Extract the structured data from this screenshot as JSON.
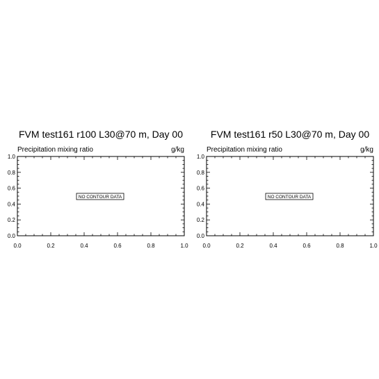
{
  "chart_data": [
    {
      "type": "contour",
      "title": "FVM test161 r100 L30@70 m, Day 00",
      "left_label": "Precipitation mixing ratio",
      "right_label": "g/kg",
      "message": "NO CONTOUR DATA",
      "xlim": [
        0.0,
        1.0
      ],
      "ylim": [
        0.0,
        1.0
      ],
      "x_ticks": [
        "0.0",
        "0.2",
        "0.4",
        "0.6",
        "0.8",
        "1.0"
      ],
      "y_ticks": [
        "0.0",
        "0.2",
        "0.4",
        "0.6",
        "0.8",
        "1.0"
      ],
      "values": []
    },
    {
      "type": "contour",
      "title": "FVM test161 r50 L30@70 m, Day 00",
      "left_label": "Precipitation mixing ratio",
      "right_label": "g/kg",
      "message": "NO CONTOUR DATA",
      "xlim": [
        0.0,
        1.0
      ],
      "ylim": [
        0.0,
        1.0
      ],
      "x_ticks": [
        "0.0",
        "0.2",
        "0.4",
        "0.6",
        "0.8",
        "1.0"
      ],
      "y_ticks": [
        "0.0",
        "0.2",
        "0.4",
        "0.6",
        "0.8",
        "1.0"
      ],
      "values": []
    }
  ],
  "colors": {
    "axis": "#000000",
    "background": "#ffffff"
  }
}
